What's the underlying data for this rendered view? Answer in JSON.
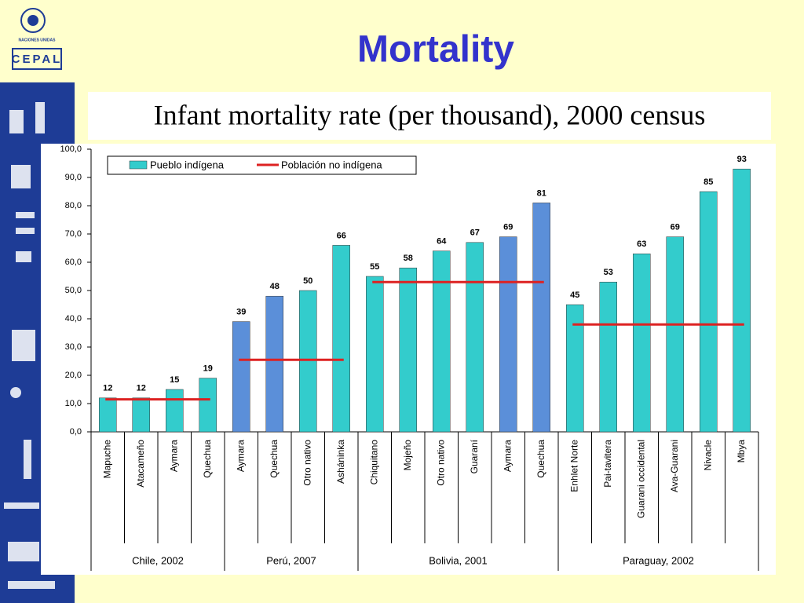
{
  "slide": {
    "logo_top": "NACIONES UNIDAS",
    "logo_bottom": "CEPAL",
    "title": "Mortality"
  },
  "chart_data": {
    "type": "bar",
    "title": "Infant mortality rate (per thousand), 2000 census",
    "ylim": [
      0,
      100
    ],
    "yticks": [
      {
        "value": 0,
        "label": "0,0"
      },
      {
        "value": 10,
        "label": "10,0"
      },
      {
        "value": 20,
        "label": "20,0"
      },
      {
        "value": 30,
        "label": "30,0"
      },
      {
        "value": 40,
        "label": "40,0"
      },
      {
        "value": 50,
        "label": "50,0"
      },
      {
        "value": 60,
        "label": "60,0"
      },
      {
        "value": 70,
        "label": "70,0"
      },
      {
        "value": 80,
        "label": "80,0"
      },
      {
        "value": 90,
        "label": "90,0"
      },
      {
        "value": 100,
        "label": "100,0"
      }
    ],
    "legend": [
      {
        "name": "Pueblo indígena",
        "color": "#33cccc"
      },
      {
        "name": "Población no indígena",
        "color": "#dd2222"
      }
    ],
    "groups": [
      {
        "label": "Chile, 2002",
        "categories": [
          "Mapuche",
          "Atacameño",
          "Aymara",
          "Quechua"
        ],
        "values": [
          12,
          12,
          15,
          19
        ],
        "colors": [
          "#33cccc",
          "#33cccc",
          "#33cccc",
          "#33cccc"
        ],
        "reference": 11.5
      },
      {
        "label": "Perú, 2007",
        "categories": [
          "Aymara",
          "Quechua",
          "Otro nativo",
          "Asháninka"
        ],
        "values": [
          39,
          48,
          50,
          66
        ],
        "colors": [
          "#5b8fd9",
          "#5b8fd9",
          "#33cccc",
          "#33cccc"
        ],
        "reference": 25.5
      },
      {
        "label": "Bolivia, 2001",
        "categories": [
          "Chiquitano",
          "Mojeño",
          "Otro nativo",
          "Guaraní",
          "Aymara",
          "Quechua"
        ],
        "values": [
          55,
          58,
          64,
          67,
          69,
          81
        ],
        "colors": [
          "#33cccc",
          "#33cccc",
          "#33cccc",
          "#33cccc",
          "#5b8fd9",
          "#5b8fd9"
        ],
        "reference": 53
      },
      {
        "label": "Paraguay, 2002",
        "categories": [
          "Enhlet Norte",
          "Pai-tavitera",
          "Guarani occidental",
          "Ava-Guarani",
          "Nivacle",
          "Mbya"
        ],
        "values": [
          45,
          53,
          63,
          69,
          85,
          93
        ],
        "colors": [
          "#33cccc",
          "#33cccc",
          "#33cccc",
          "#33cccc",
          "#33cccc",
          "#33cccc"
        ],
        "reference": 38
      }
    ]
  }
}
